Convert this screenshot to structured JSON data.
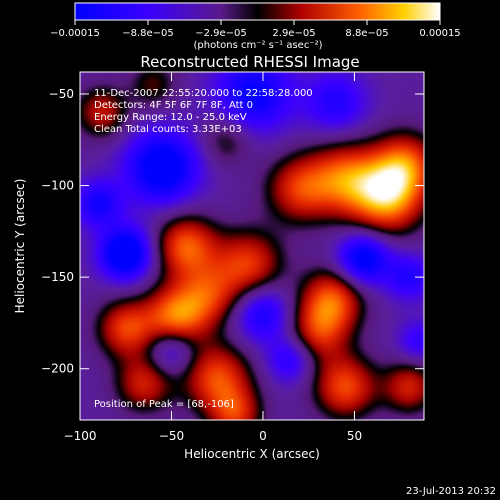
{
  "chart_data": {
    "type": "heatmap",
    "title": "Reconstructed RHESSI Image",
    "xlabel": "Heliocentric X (arcsec)",
    "ylabel": "Heliocentric Y (arcsec)",
    "xlim": [
      -100,
      88
    ],
    "ylim": [
      -228,
      -38
    ],
    "xticks": [
      -100,
      -50,
      0,
      50
    ],
    "xtick_labels": [
      "−100",
      "−50",
      "0",
      "50"
    ],
    "yticks": [
      -50,
      -100,
      -150,
      -200
    ],
    "ytick_labels": [
      "−50",
      "−100",
      "−150",
      "−200"
    ],
    "colorbar": {
      "range": [
        -0.00015,
        0.00015
      ],
      "tick_labels": [
        "−0.00015",
        "−8.8e−05",
        "−2.9e−05",
        "2.9e−05",
        "8.8e−05",
        "0.00015"
      ],
      "unit_label": "(photons cm⁻² s⁻¹ asec⁻²)"
    },
    "info_lines": [
      "11-Dec-2007 22:55:20.000 to 22:58:28.000",
      "Detectors: 4F 5F 6F 7F 8F, Att 0",
      "Energy Range: 12.0 - 25.0 keV",
      "Clean     Total counts: 3.33E+03"
    ],
    "peak_label": "Position of Peak = [68,-106]",
    "peak_position": [
      68,
      -106
    ],
    "timestamp": "23-Jul-2013 20:32",
    "blobs": [
      {
        "x": 68,
        "y": -106,
        "v": 1.0,
        "s": 14
      },
      {
        "x": 45,
        "y": -96,
        "v": 0.75,
        "s": 14
      },
      {
        "x": 20,
        "y": -102,
        "v": 0.65,
        "s": 13
      },
      {
        "x": 78,
        "y": -88,
        "v": 0.7,
        "s": 12
      },
      {
        "x": -42,
        "y": -133,
        "v": 0.8,
        "s": 12
      },
      {
        "x": -8,
        "y": -143,
        "v": 0.7,
        "s": 13
      },
      {
        "x": -48,
        "y": -172,
        "v": 0.85,
        "s": 12
      },
      {
        "x": -30,
        "y": -160,
        "v": 0.6,
        "s": 12
      },
      {
        "x": 38,
        "y": -162,
        "v": 0.75,
        "s": 12
      },
      {
        "x": 30,
        "y": -180,
        "v": 0.6,
        "s": 12
      },
      {
        "x": -75,
        "y": -178,
        "v": 0.7,
        "s": 11
      },
      {
        "x": -88,
        "y": -60,
        "v": 0.55,
        "s": 10
      },
      {
        "x": -60,
        "y": -45,
        "v": 0.35,
        "s": 9
      },
      {
        "x": -20,
        "y": -75,
        "v": 0.35,
        "s": 10
      },
      {
        "x": -25,
        "y": -205,
        "v": 0.75,
        "s": 13
      },
      {
        "x": -65,
        "y": -208,
        "v": 0.6,
        "s": 11
      },
      {
        "x": 45,
        "y": -210,
        "v": 0.75,
        "s": 12
      },
      {
        "x": 80,
        "y": -210,
        "v": 0.6,
        "s": 10
      },
      {
        "x": -15,
        "y": -225,
        "v": 0.6,
        "s": 10
      },
      {
        "x": -75,
        "y": -137,
        "v": -1.0,
        "s": 10
      },
      {
        "x": -55,
        "y": -90,
        "v": -0.9,
        "s": 14
      },
      {
        "x": -5,
        "y": -50,
        "v": -0.7,
        "s": 15
      },
      {
        "x": 40,
        "y": -55,
        "v": -0.5,
        "s": 12
      },
      {
        "x": 55,
        "y": -140,
        "v": -0.85,
        "s": 10
      },
      {
        "x": 0,
        "y": -170,
        "v": -0.6,
        "s": 11
      },
      {
        "x": -90,
        "y": -110,
        "v": -0.6,
        "s": 9
      },
      {
        "x": 80,
        "y": -150,
        "v": -0.5,
        "s": 9
      },
      {
        "x": -50,
        "y": -190,
        "v": -0.5,
        "s": 9
      },
      {
        "x": 15,
        "y": -195,
        "v": -0.5,
        "s": 9
      },
      {
        "x": 85,
        "y": -185,
        "v": -0.4,
        "s": 8
      }
    ]
  }
}
